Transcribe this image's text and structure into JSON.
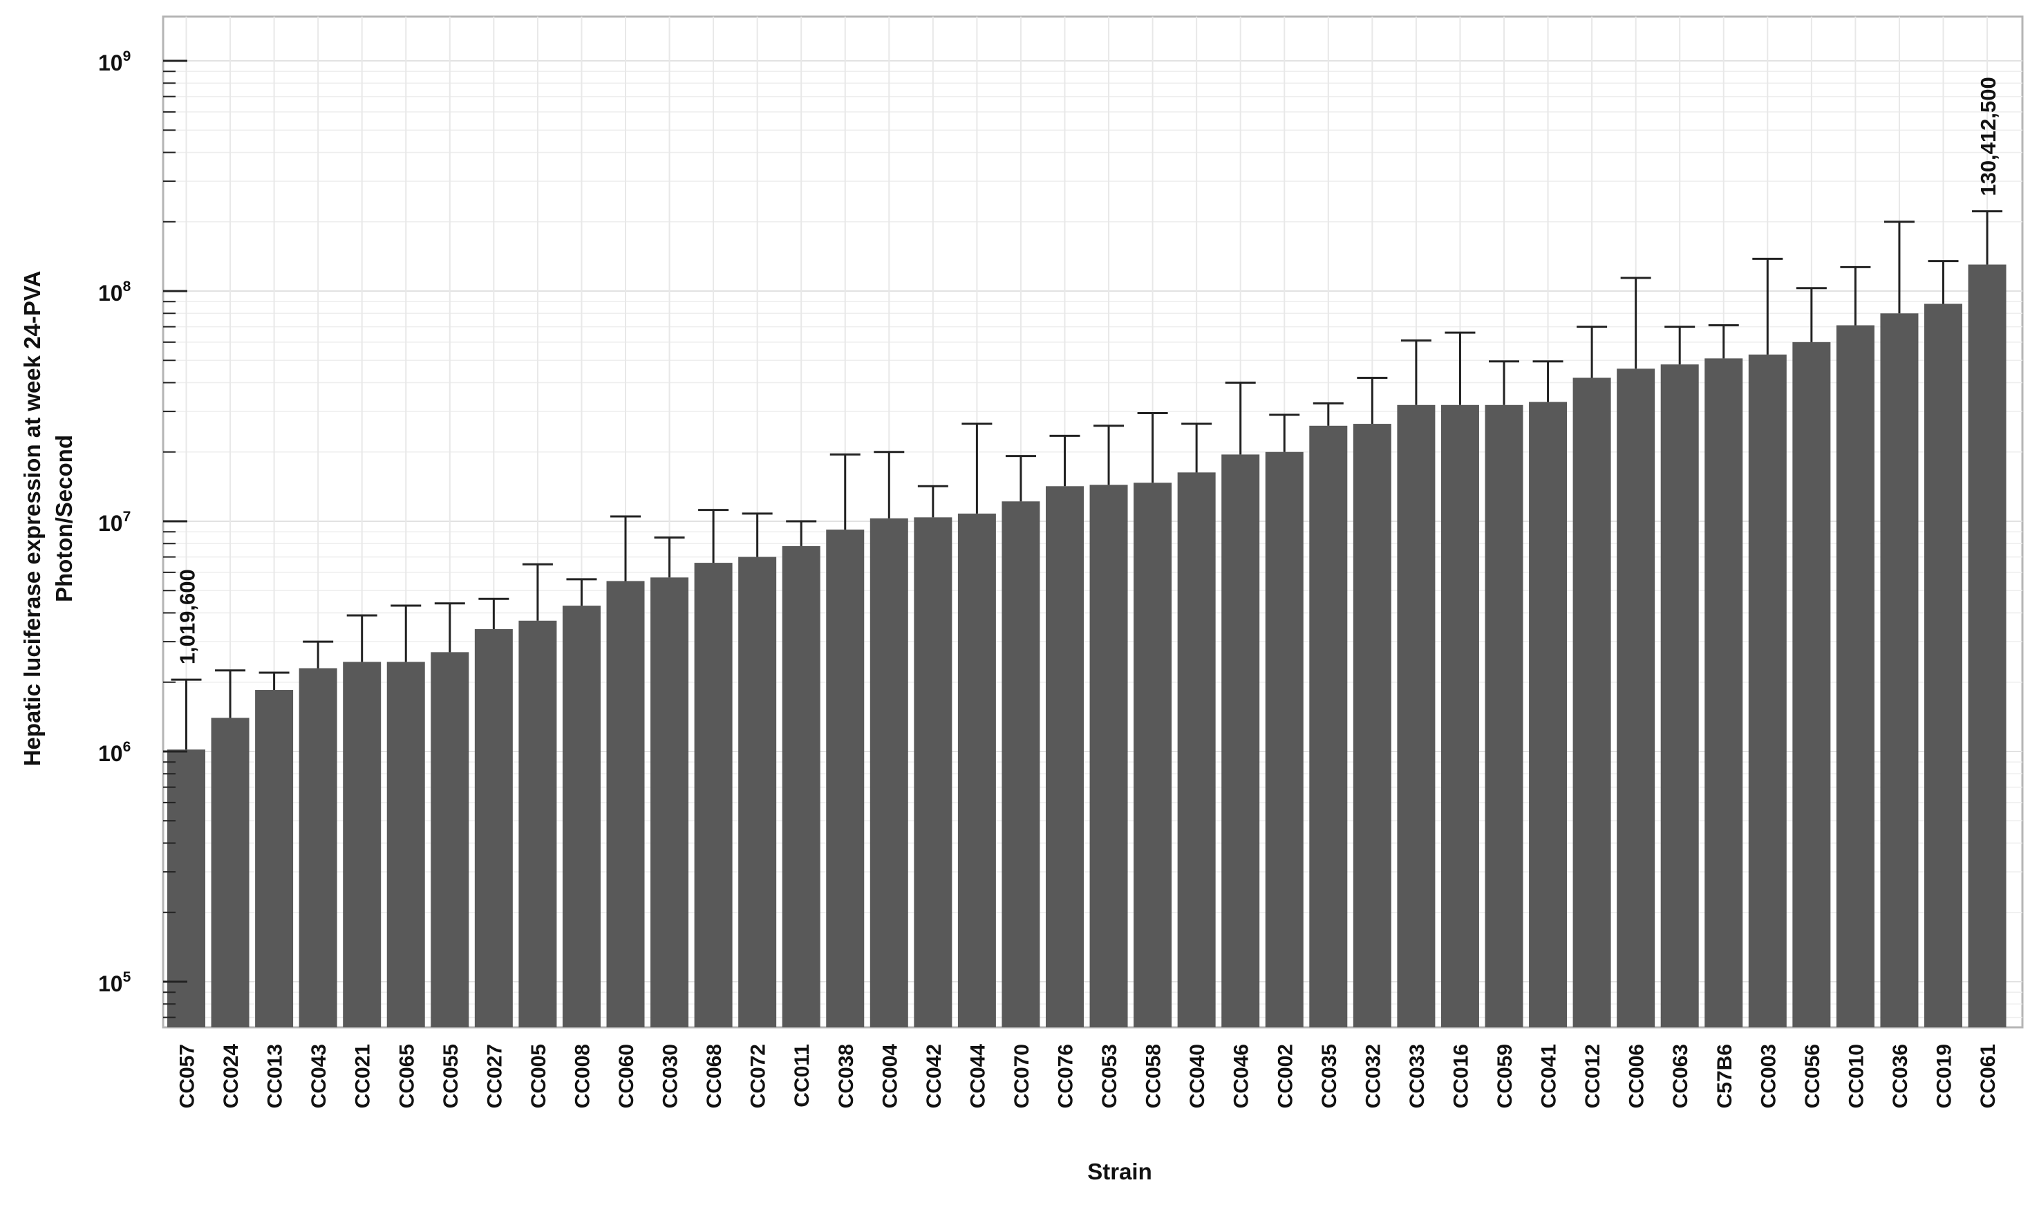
{
  "chart_data": {
    "type": "bar",
    "title": "",
    "xlabel": "Strain",
    "ylabel_lines": [
      "Hepatic luciferase expression at week 24-PVA",
      "Photon/Second"
    ],
    "yscale": "log",
    "ylim": [
      60000,
      2000000000
    ],
    "yticks": [
      {
        "value": 100000,
        "base": "10",
        "exponent": "5"
      },
      {
        "value": 1000000,
        "base": "10",
        "exponent": "6"
      },
      {
        "value": 10000000,
        "base": "10",
        "exponent": "7"
      },
      {
        "value": 100000000,
        "base": "10",
        "exponent": "8"
      },
      {
        "value": 1000000000,
        "base": "10",
        "exponent": "9"
      }
    ],
    "grid": true,
    "bar_color": "#595959",
    "categories": [
      "CC057",
      "CC024",
      "CC013",
      "CC043",
      "CC021",
      "CC065",
      "CC055",
      "CC027",
      "CC005",
      "CC008",
      "CC060",
      "CC030",
      "CC068",
      "CC072",
      "CC011",
      "CC038",
      "CC004",
      "CC042",
      "CC044",
      "CC070",
      "CC076",
      "CC053",
      "CC058",
      "CC040",
      "CC046",
      "CC002",
      "CC035",
      "CC032",
      "CC033",
      "CC016",
      "CC059",
      "CC041",
      "CC012",
      "CC006",
      "CC063",
      "C57B6",
      "CC003",
      "CC056",
      "CC010",
      "CC036",
      "CC019",
      "CC061"
    ],
    "values": [
      1019600,
      1400000,
      1850000,
      2300000,
      2450000,
      2450000,
      2700000,
      3400000,
      3700000,
      4300000,
      5500000,
      5700000,
      6600000,
      7000000,
      7800000,
      9200000,
      10300000,
      10400000,
      10800000,
      12200000,
      14200000,
      14400000,
      14700000,
      16300000,
      19500000,
      20000000,
      26000000,
      26500000,
      32000000,
      32000000,
      32000000,
      33000000,
      42000000,
      46000000,
      48000000,
      51000000,
      53000000,
      60000000,
      71000000,
      80000000,
      88000000,
      130412500
    ],
    "error_upper": [
      2050000,
      2250000,
      2200000,
      3000000,
      3900000,
      4300000,
      4400000,
      4600000,
      6500000,
      5600000,
      10500000,
      8500000,
      11200000,
      10800000,
      10000000,
      19500000,
      20000000,
      14200000,
      26500000,
      19200000,
      23500000,
      26000000,
      29500000,
      26500000,
      40000000,
      29000000,
      32500000,
      42000000,
      61000000,
      66000000,
      49500000,
      49500000,
      70000000,
      114000000,
      70000000,
      71000000,
      138000000,
      103000000,
      127000000,
      200000000,
      135000000,
      222000000
    ],
    "annotations": [
      {
        "category": "CC057",
        "text": "1,019,600"
      },
      {
        "category": "CC061",
        "text": "130,412,500"
      }
    ]
  }
}
